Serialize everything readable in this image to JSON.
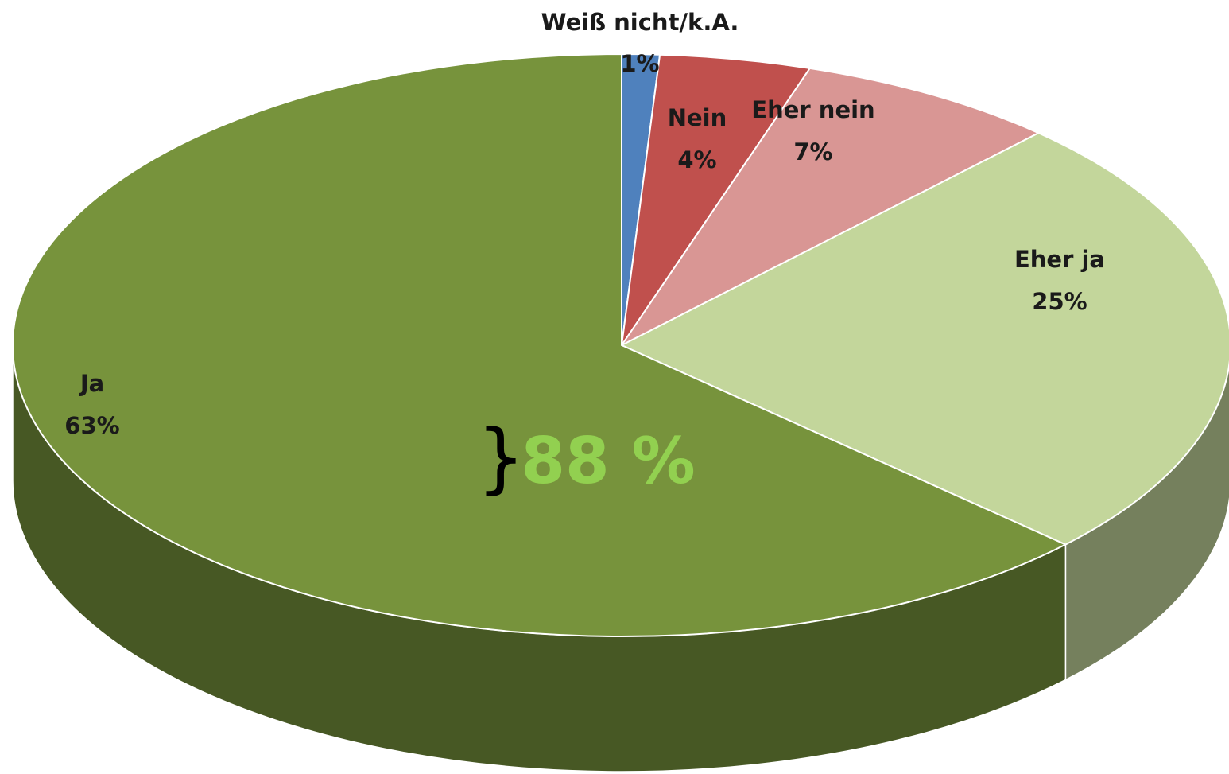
{
  "chart_data": {
    "type": "pie",
    "categories": [
      "Weiß nicht/k.A.",
      "Nein",
      "Eher nein",
      "Eher ja",
      "Ja"
    ],
    "values": [
      1,
      4,
      7,
      25,
      63
    ],
    "value_labels": [
      "1%",
      "4%",
      "7%",
      "25%",
      "63%"
    ],
    "colors": [
      "#4f81bd",
      "#c0504d",
      "#d99694",
      "#c3d69b",
      "#77933c"
    ],
    "annotation": {
      "brace": "}",
      "text": "88 %"
    }
  }
}
